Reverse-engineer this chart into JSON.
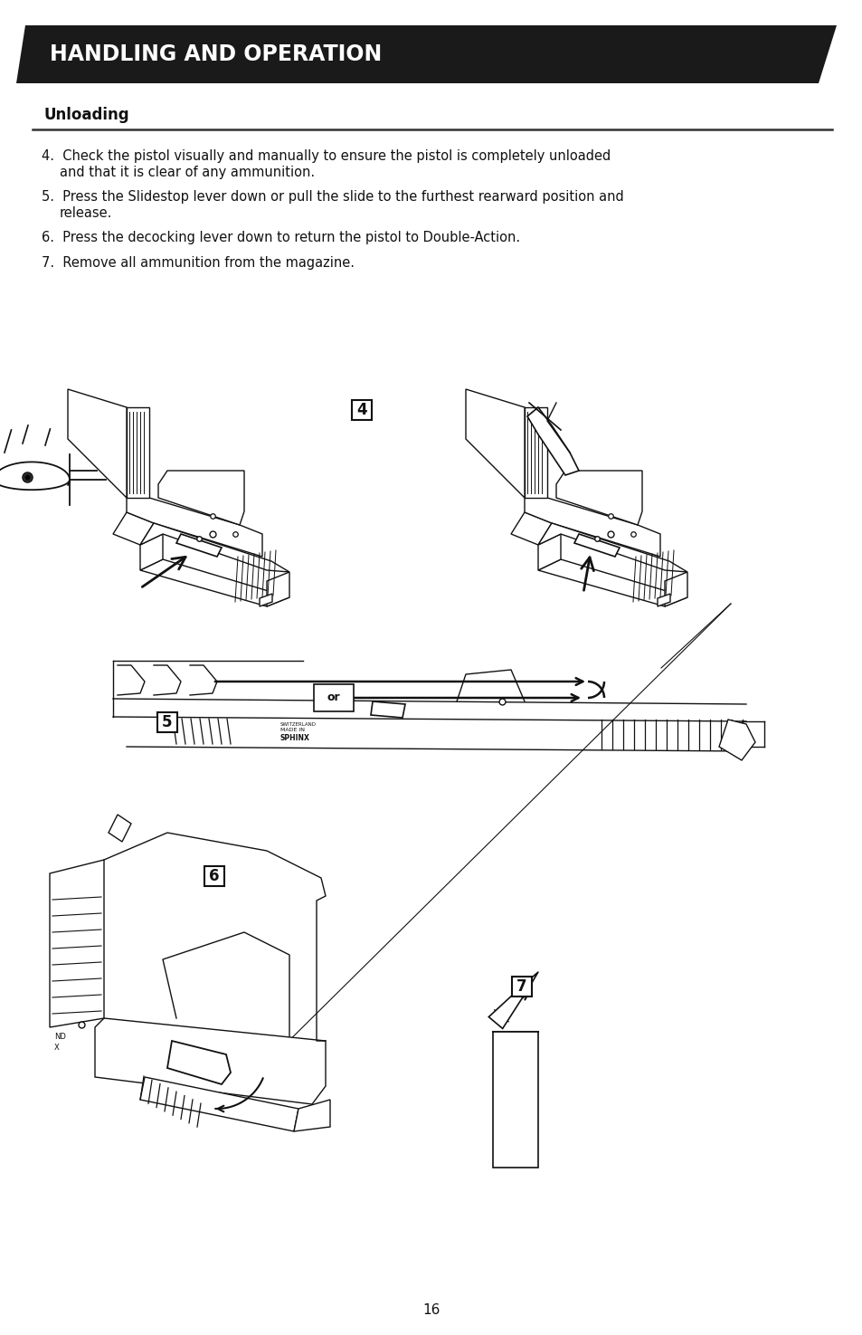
{
  "bg_color": "#ffffff",
  "header_bg": "#1a1a1a",
  "header_text": "HANDLING AND OPERATION",
  "header_text_color": "#ffffff",
  "header_font_size": 17,
  "section_title": "Unloading",
  "section_title_font_size": 12,
  "line_color": "#222222",
  "body_font_size": 10.5,
  "items": [
    {
      "num": "4.",
      "line1": "Check the pistol visually and manually to ensure the pistol is completely unloaded",
      "line2": "and that it is clear of any ammunition."
    },
    {
      "num": "5.",
      "line1": "Press the Slidestop lever down or pull the slide to the furthest rearward position and",
      "line2": "release."
    },
    {
      "num": "6.",
      "line1": "Press the decocking lever down to return the pistol to Double-Action.",
      "line2": ""
    },
    {
      "num": "7.",
      "line1": "Remove all ammunition from the magazine.",
      "line2": ""
    }
  ],
  "page_number": "16"
}
